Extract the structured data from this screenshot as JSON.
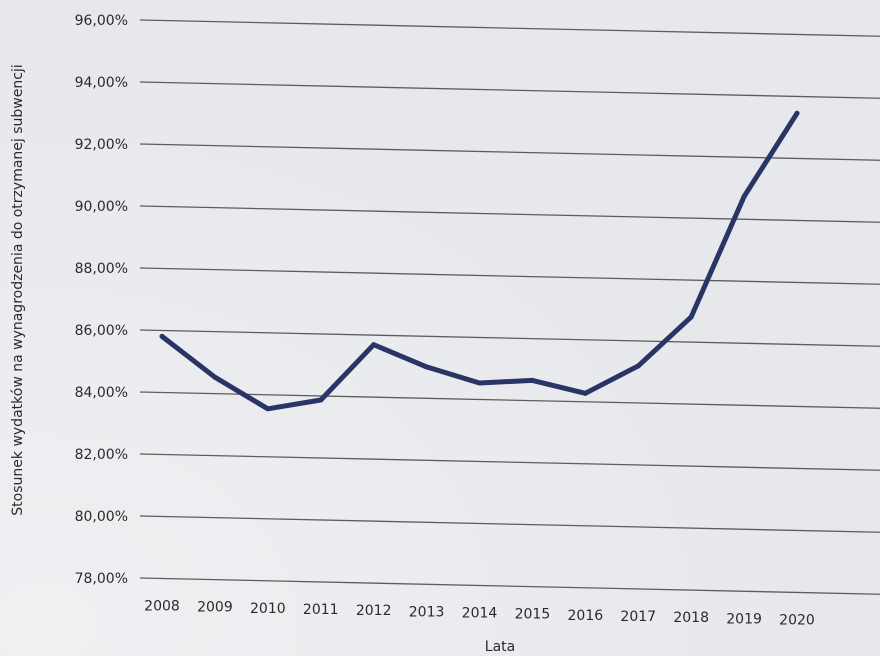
{
  "chart_data": {
    "type": "line",
    "title": "",
    "xlabel": "Lata",
    "ylabel": "Stosunek wydatków na wynagrodzenia do otrzymanej subwencji",
    "x": [
      "2008",
      "2009",
      "2010",
      "2011",
      "2012",
      "2013",
      "2014",
      "2015",
      "2016",
      "2017",
      "2018",
      "2019",
      "2020"
    ],
    "series": [
      {
        "values": [
          85.8,
          84.5,
          83.5,
          83.8,
          85.6,
          84.9,
          84.4,
          84.5,
          84.1,
          85.0,
          86.6,
          90.5,
          93.2
        ]
      }
    ],
    "ylim": [
      78,
      96
    ],
    "yticks": [
      96,
      94,
      92,
      90,
      88,
      86,
      84,
      82,
      80,
      78
    ],
    "ytick_labels": [
      "96,00%",
      "94,00%",
      "92,00%",
      "90,00%",
      "88,00%",
      "86,00%",
      "84,00%",
      "82,00%",
      "80,00%",
      "78,00%"
    ],
    "grid": true,
    "legend": "none",
    "line_color": "#2a3566",
    "grid_color": "#3a3a3a"
  }
}
